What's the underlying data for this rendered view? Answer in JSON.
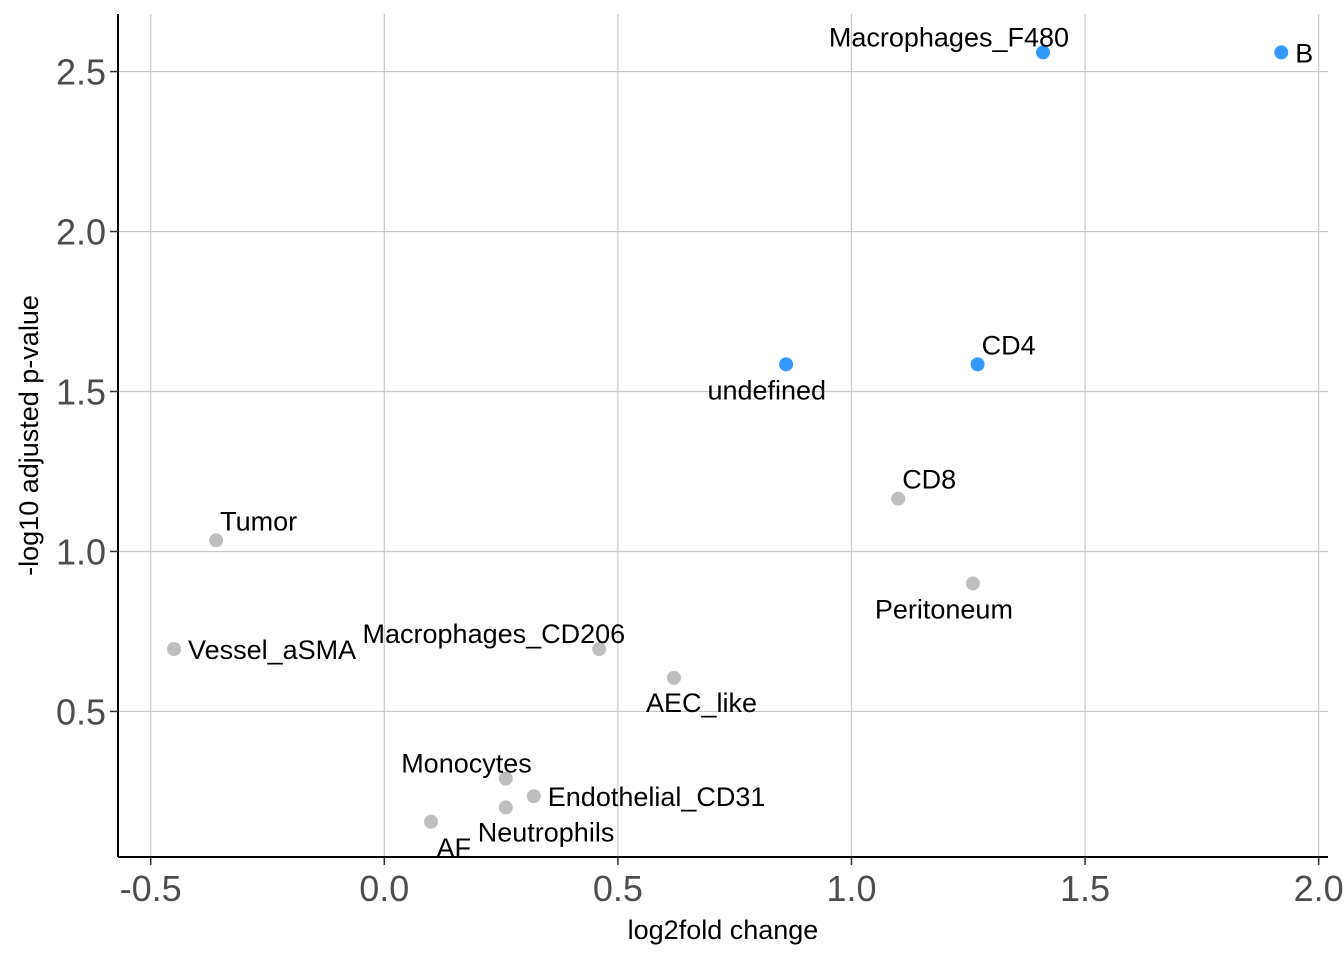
{
  "chart_data": {
    "type": "scatter",
    "xlabel": "log2fold change",
    "ylabel": "-log10 adjusted p-value",
    "xlim": [
      -0.57,
      2.02
    ],
    "ylim": [
      0.045,
      2.68
    ],
    "x_ticks": [
      -0.5,
      0.0,
      0.5,
      1.0,
      1.5,
      2.0
    ],
    "x_tick_labels": [
      "-0.5",
      "0.0",
      "0.5",
      "1.0",
      "1.5",
      "2.0"
    ],
    "y_ticks": [
      0.5,
      1.0,
      1.5,
      2.0,
      2.5
    ],
    "y_tick_labels": [
      "0.5",
      "1.0",
      "1.5",
      "2.0",
      "2.5"
    ],
    "grid": true,
    "colors": {
      "significant": "#3399ff",
      "not_significant": "#bebebe"
    },
    "points": [
      {
        "label": "Macrophages_F480",
        "x": 1.41,
        "y": 2.56,
        "significant": true,
        "label_pos": "above-left"
      },
      {
        "label": "B",
        "x": 1.92,
        "y": 2.56,
        "significant": true,
        "label_pos": "right"
      },
      {
        "label": "CD4",
        "x": 1.27,
        "y": 1.585,
        "significant": true,
        "label_pos": "above-right"
      },
      {
        "label": "undefined",
        "x": 0.86,
        "y": 1.585,
        "significant": true,
        "label_pos": "below-left"
      },
      {
        "label": "CD8",
        "x": 1.1,
        "y": 1.165,
        "significant": false,
        "label_pos": "above-right"
      },
      {
        "label": "Peritoneum",
        "x": 1.26,
        "y": 0.9,
        "significant": false,
        "label_pos": "below-left"
      },
      {
        "label": "Tumor",
        "x": -0.36,
        "y": 1.035,
        "significant": false,
        "label_pos": "above-right"
      },
      {
        "label": "Vessel_aSMA",
        "x": -0.45,
        "y": 0.695,
        "significant": false,
        "label_pos": "right"
      },
      {
        "label": "Macrophages_CD206",
        "x": 0.46,
        "y": 0.695,
        "significant": false,
        "label_pos": "above-left"
      },
      {
        "label": "AEC_like",
        "x": 0.62,
        "y": 0.605,
        "significant": false,
        "label_pos": "below-right"
      },
      {
        "label": "Monocytes",
        "x": 0.26,
        "y": 0.29,
        "significant": false,
        "label_pos": "above-left"
      },
      {
        "label": "Endothelial_CD31",
        "x": 0.32,
        "y": 0.235,
        "significant": false,
        "label_pos": "right"
      },
      {
        "label": "Neutrophils",
        "x": 0.26,
        "y": 0.2,
        "significant": false,
        "label_pos": "below-right"
      },
      {
        "label": "AF",
        "x": 0.1,
        "y": 0.155,
        "significant": false,
        "label_pos": "below-left"
      }
    ]
  }
}
